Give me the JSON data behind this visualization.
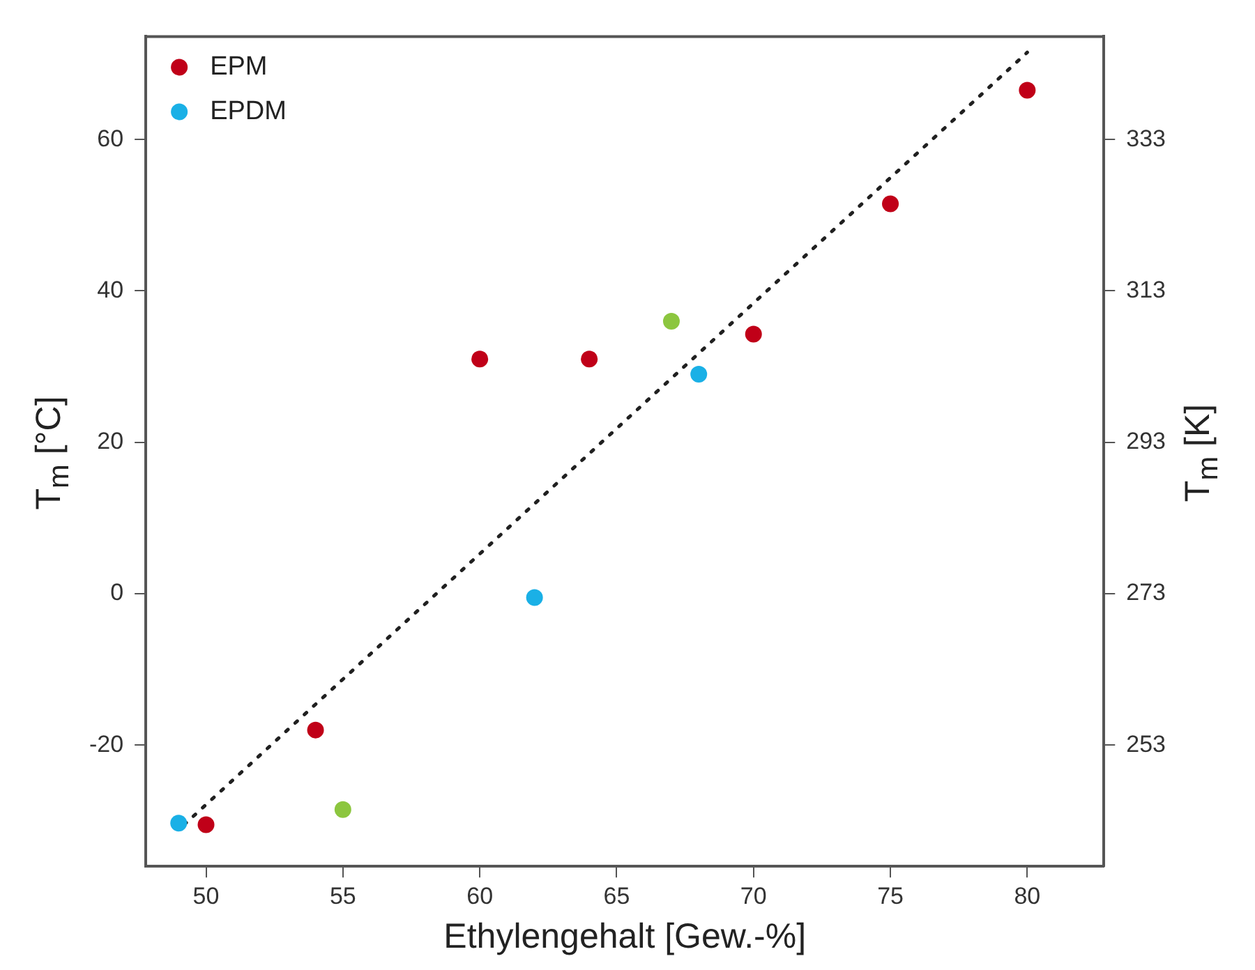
{
  "chart_data": {
    "type": "scatter",
    "xlabel": "Ethylengehalt [Gew.-%]",
    "ylabel": "T$_{m}$ [°C]",
    "y2label": "T$_{m}$ [K]",
    "xlim": [
      47.8,
      82.8
    ],
    "xticks": [
      50,
      55,
      60,
      65,
      70,
      75,
      80
    ],
    "ylim": [
      -36,
      73.6
    ],
    "yticks": [
      -20,
      0,
      20,
      40,
      60
    ],
    "y2lim": [
      237,
      346.6
    ],
    "y2ticks": [
      253,
      273,
      293,
      313,
      333
    ],
    "grid": false,
    "legend": "top left",
    "marker": "circle",
    "series": [
      {
        "name": "EPM",
        "color": "#c00018",
        "x": [
          50,
          54,
          60,
          64,
          70,
          75,
          80
        ],
        "values": [
          -30.5,
          -18,
          31,
          31,
          34.3,
          51.5,
          66.5
        ]
      },
      {
        "name": "EPDM",
        "color": "#1ab0e6",
        "x": [
          49,
          62,
          68
        ],
        "values": [
          -30.3,
          -0.5,
          29
        ]
      },
      {
        "color": "#8cc63f",
        "x": [
          55,
          67
        ],
        "values": [
          -28.5,
          36
        ]
      },
      {
        "type": "line",
        "color": "#202020",
        "line_style": "dotted",
        "marker": "none",
        "x": [
          49.2,
          80
        ],
        "values": [
          -30.5,
          71.5
        ]
      }
    ]
  }
}
